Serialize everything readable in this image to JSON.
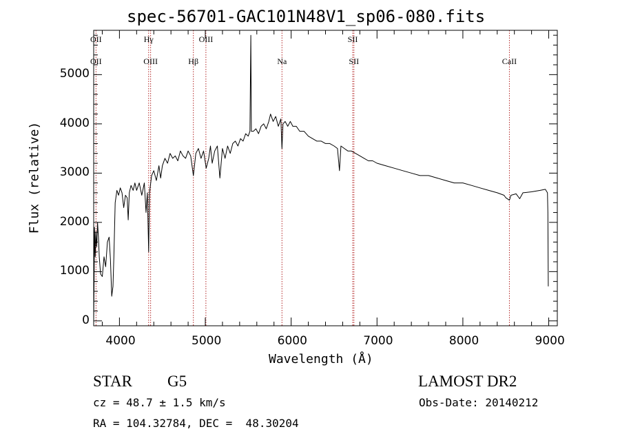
{
  "chart_data": {
    "type": "line",
    "title": "spec-56701-GAC101N48V1_sp06-080.fits",
    "xlabel": "Wavelength (Å)",
    "ylabel": "Flux (relative)",
    "xlim": [
      3700,
      9100
    ],
    "ylim": [
      -100,
      5900
    ],
    "xticks": [
      4000,
      5000,
      6000,
      7000,
      8000,
      9000
    ],
    "xtick_labels": [
      "4000",
      "5000",
      "6000",
      "7000",
      "8000",
      "9000"
    ],
    "yticks": [
      0,
      1000,
      2000,
      3000,
      4000,
      5000
    ],
    "ytick_labels": [
      "0",
      "1000",
      "2000",
      "3000",
      "4000",
      "5000"
    ],
    "line_color": "#000000",
    "marker_color": "#b22222",
    "series": [
      {
        "values": [
          [
            3700,
            0
          ],
          [
            3705,
            800
          ],
          [
            3710,
            1900
          ],
          [
            3718,
            1300
          ],
          [
            3725,
            1800
          ],
          [
            3735,
            1500
          ],
          [
            3745,
            2000
          ],
          [
            3755,
            1700
          ],
          [
            3765,
            1300
          ],
          [
            3780,
            950
          ],
          [
            3800,
            900
          ],
          [
            3820,
            1300
          ],
          [
            3840,
            1100
          ],
          [
            3860,
            1600
          ],
          [
            3880,
            1700
          ],
          [
            3895,
            1250
          ],
          [
            3910,
            500
          ],
          [
            3925,
            700
          ],
          [
            3935,
            1300
          ],
          [
            3950,
            2400
          ],
          [
            3970,
            2650
          ],
          [
            3990,
            2550
          ],
          [
            4010,
            2700
          ],
          [
            4030,
            2600
          ],
          [
            4050,
            2300
          ],
          [
            4070,
            2550
          ],
          [
            4090,
            2500
          ],
          [
            4102,
            2050
          ],
          [
            4115,
            2600
          ],
          [
            4135,
            2750
          ],
          [
            4160,
            2650
          ],
          [
            4180,
            2800
          ],
          [
            4200,
            2650
          ],
          [
            4230,
            2800
          ],
          [
            4260,
            2550
          ],
          [
            4290,
            2800
          ],
          [
            4310,
            2200
          ],
          [
            4325,
            2600
          ],
          [
            4340,
            1400
          ],
          [
            4350,
            2600
          ],
          [
            4375,
            2950
          ],
          [
            4400,
            3050
          ],
          [
            4430,
            2850
          ],
          [
            4460,
            3150
          ],
          [
            4480,
            2900
          ],
          [
            4500,
            3150
          ],
          [
            4530,
            3300
          ],
          [
            4560,
            3200
          ],
          [
            4590,
            3400
          ],
          [
            4620,
            3300
          ],
          [
            4650,
            3350
          ],
          [
            4680,
            3250
          ],
          [
            4710,
            3450
          ],
          [
            4740,
            3350
          ],
          [
            4770,
            3300
          ],
          [
            4800,
            3450
          ],
          [
            4830,
            3350
          ],
          [
            4861,
            2950
          ],
          [
            4890,
            3400
          ],
          [
            4920,
            3500
          ],
          [
            4950,
            3300
          ],
          [
            4980,
            3450
          ],
          [
            5010,
            3100
          ],
          [
            5040,
            3300
          ],
          [
            5060,
            3550
          ],
          [
            5080,
            3200
          ],
          [
            5110,
            3450
          ],
          [
            5140,
            3550
          ],
          [
            5170,
            2900
          ],
          [
            5200,
            3500
          ],
          [
            5230,
            3300
          ],
          [
            5260,
            3550
          ],
          [
            5290,
            3400
          ],
          [
            5320,
            3600
          ],
          [
            5350,
            3650
          ],
          [
            5380,
            3550
          ],
          [
            5410,
            3700
          ],
          [
            5440,
            3650
          ],
          [
            5470,
            3800
          ],
          [
            5500,
            3750
          ],
          [
            5520,
            3850
          ],
          [
            5530,
            5800
          ],
          [
            5537,
            3850
          ],
          [
            5560,
            3850
          ],
          [
            5590,
            3900
          ],
          [
            5620,
            3800
          ],
          [
            5650,
            3950
          ],
          [
            5680,
            4000
          ],
          [
            5710,
            3900
          ],
          [
            5740,
            4050
          ],
          [
            5760,
            4200
          ],
          [
            5790,
            4050
          ],
          [
            5820,
            4150
          ],
          [
            5850,
            3950
          ],
          [
            5880,
            4100
          ],
          [
            5893,
            3500
          ],
          [
            5905,
            4000
          ],
          [
            5930,
            4050
          ],
          [
            5960,
            3950
          ],
          [
            5990,
            4050
          ],
          [
            6020,
            3950
          ],
          [
            6060,
            3950
          ],
          [
            6100,
            3850
          ],
          [
            6150,
            3850
          ],
          [
            6200,
            3750
          ],
          [
            6250,
            3700
          ],
          [
            6300,
            3650
          ],
          [
            6350,
            3650
          ],
          [
            6400,
            3600
          ],
          [
            6450,
            3600
          ],
          [
            6500,
            3550
          ],
          [
            6540,
            3500
          ],
          [
            6563,
            3050
          ],
          [
            6580,
            3550
          ],
          [
            6620,
            3500
          ],
          [
            6660,
            3450
          ],
          [
            6700,
            3450
          ],
          [
            6750,
            3400
          ],
          [
            6800,
            3350
          ],
          [
            6850,
            3300
          ],
          [
            6900,
            3250
          ],
          [
            6950,
            3250
          ],
          [
            7000,
            3200
          ],
          [
            7100,
            3150
          ],
          [
            7200,
            3100
          ],
          [
            7300,
            3050
          ],
          [
            7400,
            3000
          ],
          [
            7500,
            2950
          ],
          [
            7600,
            2950
          ],
          [
            7700,
            2900
          ],
          [
            7800,
            2850
          ],
          [
            7900,
            2800
          ],
          [
            8000,
            2800
          ],
          [
            8100,
            2750
          ],
          [
            8200,
            2700
          ],
          [
            8300,
            2650
          ],
          [
            8400,
            2600
          ],
          [
            8480,
            2550
          ],
          [
            8500,
            2500
          ],
          [
            8542,
            2450
          ],
          [
            8560,
            2550
          ],
          [
            8620,
            2580
          ],
          [
            8662,
            2480
          ],
          [
            8700,
            2600
          ],
          [
            8800,
            2620
          ],
          [
            8900,
            2650
          ],
          [
            8960,
            2670
          ],
          [
            8985,
            2600
          ],
          [
            8990,
            2200
          ],
          [
            8995,
            700
          ]
        ]
      }
    ],
    "lines": [
      {
        "wavelength": 3727,
        "labels": [
          "OII",
          "OII"
        ]
      },
      {
        "wavelength": 4340,
        "labels": [
          "Hγ",
          ""
        ]
      },
      {
        "wavelength": 4363,
        "labels": [
          "",
          "OIII"
        ]
      },
      {
        "wavelength": 4861,
        "labels": [
          "",
          "Hβ"
        ]
      },
      {
        "wavelength": 5007,
        "labels": [
          "OIII",
          ""
        ]
      },
      {
        "wavelength": 5893,
        "labels": [
          "",
          "Na"
        ]
      },
      {
        "wavelength": 6717,
        "labels": [
          "SII",
          ""
        ]
      },
      {
        "wavelength": 6731,
        "labels": [
          "",
          "SII"
        ]
      },
      {
        "wavelength": 8542,
        "labels": [
          "",
          "CaII"
        ]
      }
    ]
  },
  "footer": {
    "class_label": "STAR",
    "subclass": "G5",
    "survey": "LAMOST DR2",
    "redshift": "cz = 48.7 ± 1.5 km/s",
    "obs_date": "Obs-Date: 20140212",
    "coords": "RA = 104.32784, DEC =  48.30204"
  }
}
